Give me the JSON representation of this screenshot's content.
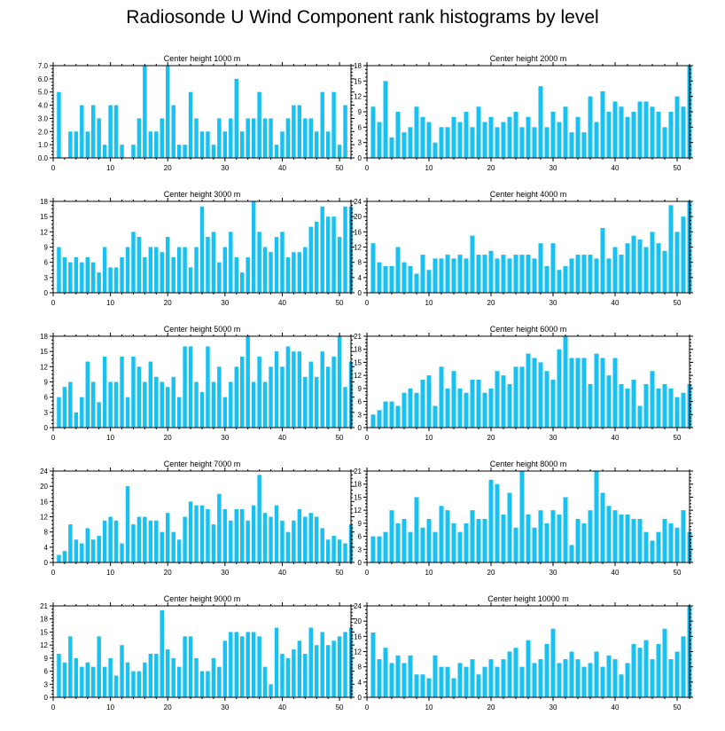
{
  "title": "Radiosonde U Wind Component rank histograms by level",
  "colors": {
    "bar": "#19c1f2",
    "axis": "#000000",
    "background": "#ffffff"
  },
  "chart_data": [
    {
      "type": "bar",
      "title": "Center height 1000 m",
      "ylim": [
        0,
        7
      ],
      "yticks": [
        "0.0",
        "1.0",
        "2.0",
        "3.0",
        "4.0",
        "5.0",
        "6.0",
        "7.0"
      ],
      "xticks": [
        0,
        10,
        20,
        30,
        40,
        50
      ],
      "values": [
        5,
        0,
        2,
        2,
        4,
        2,
        4,
        3,
        1,
        4,
        4,
        1,
        0,
        1,
        3,
        7,
        2,
        2,
        3,
        7,
        4,
        1,
        1,
        5,
        3,
        2,
        2,
        1,
        3,
        2,
        3,
        6,
        2,
        3,
        3,
        5,
        3,
        3,
        1,
        2,
        3,
        4,
        4,
        3,
        3,
        2,
        5,
        2,
        5,
        1,
        4
      ]
    },
    {
      "type": "bar",
      "title": "Center height 2000 m",
      "ylim": [
        0,
        18
      ],
      "yticks": [
        "0",
        "3",
        "6",
        "9",
        "12",
        "15",
        "18"
      ],
      "xticks": [
        0,
        10,
        20,
        30,
        40,
        50
      ],
      "values": [
        10,
        7,
        15,
        4,
        9,
        5,
        6,
        10,
        8,
        7,
        3,
        6,
        6,
        8,
        7,
        9,
        6,
        10,
        7,
        8,
        6,
        7,
        8,
        9,
        6,
        8,
        6,
        14,
        6,
        9,
        7,
        10,
        5,
        8,
        5,
        12,
        7,
        13,
        9,
        11,
        10,
        8,
        9,
        11,
        11,
        10,
        9,
        6,
        9,
        12,
        10,
        18
      ]
    },
    {
      "type": "bar",
      "title": "Center height 3000 m",
      "ylim": [
        0,
        18
      ],
      "yticks": [
        "0",
        "3",
        "6",
        "9",
        "12",
        "15",
        "18"
      ],
      "xticks": [
        0,
        10,
        20,
        30,
        40,
        50
      ],
      "values": [
        9,
        7,
        6,
        7,
        6,
        7,
        6,
        4,
        9,
        5,
        5,
        7,
        9,
        12,
        11,
        7,
        9,
        9,
        8,
        11,
        7,
        9,
        9,
        5,
        9,
        17,
        11,
        12,
        6,
        9,
        12,
        7,
        4,
        7,
        18,
        12,
        9,
        8,
        11,
        12,
        7,
        8,
        8,
        9,
        13,
        14,
        17,
        15,
        15,
        11,
        17,
        17
      ]
    },
    {
      "type": "bar",
      "title": "Center height 4000 m",
      "ylim": [
        0,
        24
      ],
      "yticks": [
        "0",
        "4",
        "8",
        "12",
        "16",
        "20",
        "24"
      ],
      "xticks": [
        0,
        10,
        20,
        30,
        40,
        50
      ],
      "values": [
        13,
        8,
        7,
        7,
        12,
        8,
        7,
        5,
        10,
        6,
        9,
        9,
        10,
        9,
        10,
        9,
        15,
        10,
        10,
        11,
        9,
        10,
        9,
        10,
        10,
        10,
        9,
        13,
        7,
        13,
        6,
        7,
        9,
        10,
        10,
        10,
        9,
        17,
        9,
        12,
        10,
        13,
        15,
        14,
        12,
        16,
        13,
        11,
        23,
        16,
        20,
        24
      ]
    },
    {
      "type": "bar",
      "title": "Center height 5000 m",
      "ylim": [
        0,
        18
      ],
      "yticks": [
        "0",
        "3",
        "6",
        "9",
        "12",
        "15",
        "18"
      ],
      "xticks": [
        0,
        10,
        20,
        30,
        40,
        50
      ],
      "values": [
        6,
        8,
        9,
        3,
        6,
        13,
        9,
        5,
        14,
        9,
        9,
        14,
        6,
        14,
        12,
        9,
        13,
        10,
        9,
        8,
        10,
        6,
        16,
        16,
        9,
        7,
        16,
        9,
        12,
        6,
        9,
        12,
        14,
        18,
        9,
        14,
        9,
        12,
        15,
        12,
        16,
        15,
        15,
        10,
        13,
        10,
        15,
        12,
        14,
        18,
        8,
        13
      ]
    },
    {
      "type": "bar",
      "title": "Center height 6000 m",
      "ylim": [
        0,
        21
      ],
      "yticks": [
        "0",
        "3",
        "6",
        "9",
        "12",
        "15",
        "18",
        "21"
      ],
      "xticks": [
        0,
        10,
        20,
        30,
        40,
        50
      ],
      "values": [
        3,
        4,
        6,
        6,
        5,
        8,
        9,
        8,
        11,
        12,
        5,
        14,
        9,
        13,
        9,
        8,
        11,
        11,
        8,
        9,
        13,
        12,
        10,
        14,
        14,
        17,
        16,
        15,
        13,
        11,
        18,
        21,
        16,
        16,
        16,
        10,
        17,
        16,
        12,
        16,
        10,
        9,
        11,
        5,
        10,
        13,
        9,
        10,
        9,
        7,
        8,
        10
      ]
    },
    {
      "type": "bar",
      "title": "Center height 7000 m",
      "ylim": [
        0,
        24
      ],
      "yticks": [
        "0",
        "4",
        "8",
        "12",
        "16",
        "20",
        "24"
      ],
      "xticks": [
        0,
        10,
        20,
        30,
        40,
        50
      ],
      "values": [
        2,
        3,
        10,
        6,
        5,
        9,
        6,
        7,
        11,
        12,
        11,
        5,
        20,
        10,
        12,
        12,
        11,
        11,
        8,
        13,
        8,
        6,
        12,
        16,
        15,
        15,
        14,
        10,
        18,
        14,
        11,
        14,
        14,
        11,
        15,
        23,
        13,
        12,
        15,
        11,
        8,
        11,
        14,
        12,
        13,
        12,
        9,
        6,
        7,
        6,
        5,
        10
      ]
    },
    {
      "type": "bar",
      "title": "Center height 8000 m",
      "ylim": [
        0,
        21
      ],
      "yticks": [
        "0",
        "3",
        "6",
        "9",
        "12",
        "15",
        "18",
        "21"
      ],
      "xticks": [
        0,
        10,
        20,
        30,
        40,
        50
      ],
      "values": [
        6,
        6,
        7,
        12,
        9,
        10,
        7,
        15,
        8,
        10,
        7,
        13,
        12,
        9,
        7,
        9,
        12,
        10,
        10,
        19,
        18,
        11,
        16,
        8,
        21,
        11,
        8,
        12,
        9,
        12,
        11,
        15,
        4,
        10,
        9,
        12,
        21,
        16,
        13,
        12,
        11,
        11,
        10,
        10,
        7,
        5,
        7,
        10,
        9,
        8,
        12,
        7
      ]
    },
    {
      "type": "bar",
      "title": "Center height 9000 m",
      "ylim": [
        0,
        21
      ],
      "yticks": [
        "0",
        "3",
        "6",
        "9",
        "12",
        "15",
        "18",
        "21"
      ],
      "xticks": [
        0,
        10,
        20,
        30,
        40,
        50
      ],
      "values": [
        10,
        8,
        14,
        9,
        7,
        8,
        7,
        14,
        7,
        9,
        5,
        12,
        8,
        6,
        6,
        8,
        10,
        10,
        20,
        11,
        9,
        7,
        14,
        14,
        9,
        6,
        6,
        9,
        7,
        13,
        15,
        15,
        14,
        15,
        15,
        14,
        7,
        3,
        16,
        10,
        9,
        11,
        13,
        10,
        16,
        12,
        15,
        12,
        13,
        14,
        15,
        16
      ]
    },
    {
      "type": "bar",
      "title": "Center height 10000 m",
      "ylim": [
        0,
        24
      ],
      "yticks": [
        "0",
        "4",
        "8",
        "12",
        "16",
        "20",
        "24"
      ],
      "xticks": [
        0,
        10,
        20,
        30,
        40,
        50
      ],
      "values": [
        17,
        10,
        13,
        9,
        11,
        9,
        11,
        6,
        6,
        5,
        11,
        8,
        8,
        5,
        9,
        8,
        10,
        6,
        8,
        10,
        8,
        10,
        12,
        13,
        8,
        15,
        9,
        10,
        14,
        18,
        9,
        10,
        12,
        10,
        8,
        9,
        12,
        8,
        11,
        10,
        6,
        9,
        14,
        13,
        15,
        10,
        14,
        18,
        10,
        12,
        16,
        24
      ]
    }
  ]
}
